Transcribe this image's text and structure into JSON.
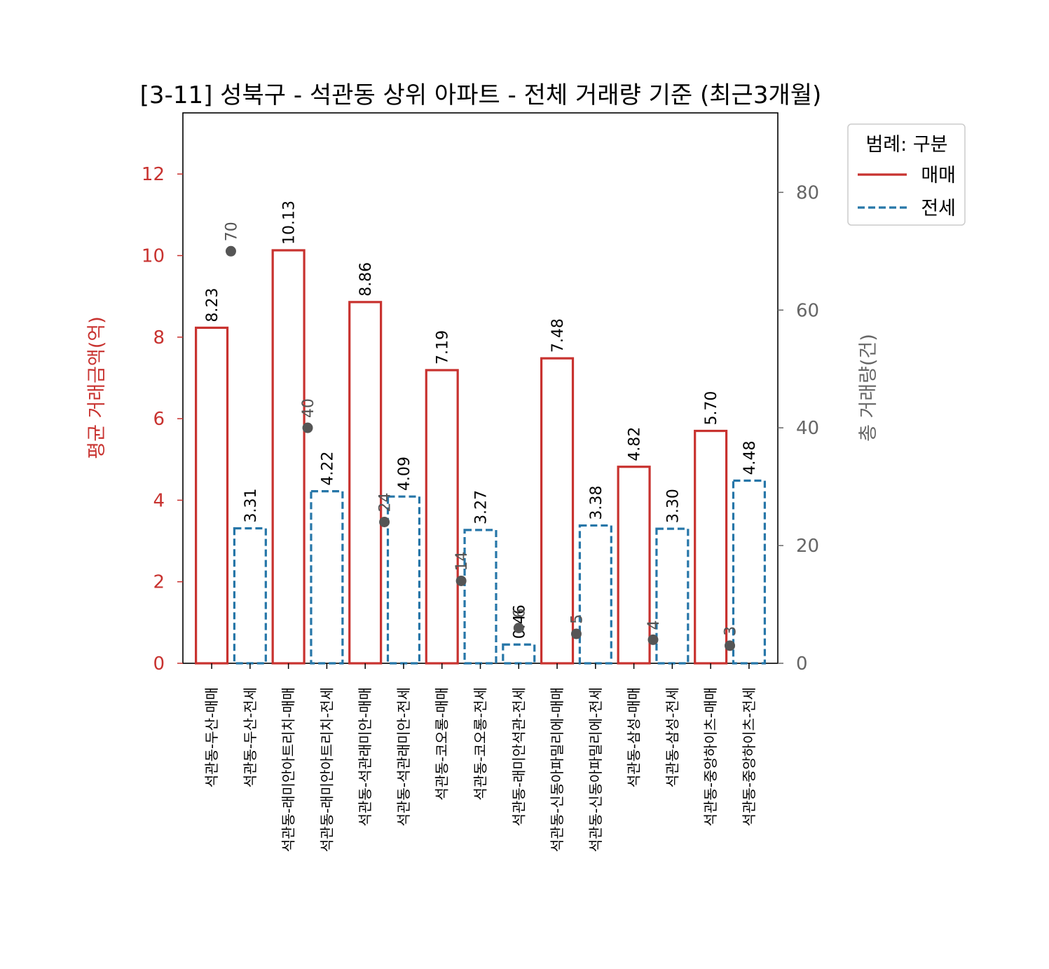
{
  "chart_data": {
    "type": "bar",
    "title": "[3-11] 성북구 - 석관동 상위 아파트 - 전체 거래량 기준 (최근3개월)",
    "ylabel": "평균 거래금액(억)",
    "y2label": "총 거래량(건)",
    "ylim": [
      0,
      13.5
    ],
    "y2lim": [
      0,
      93.5
    ],
    "yticks": [
      "0",
      "2",
      "4",
      "6",
      "8",
      "10",
      "12"
    ],
    "y2ticks": [
      "0",
      "20",
      "40",
      "60",
      "80"
    ],
    "categories": [
      "석관동-두산-매매",
      "석관동-두산-전세",
      "석관동-래미안아트리치-매매",
      "석관동-래미안아트리치-전세",
      "석관동-석관래미안-매매",
      "석관동-석관래미안-전세",
      "석관동-코오롱-매매",
      "석관동-코오롱-전세",
      "석관동-래미안석관-전세",
      "석관동-신동아파밀리에-매매",
      "석관동-신동아파밀리에-전세",
      "석관동-삼성-매매",
      "석관동-삼성-전세",
      "석관동-중앙하이츠-매매",
      "석관동-중앙하이츠-전세"
    ],
    "kinds": [
      "매매",
      "전세",
      "매매",
      "전세",
      "매매",
      "전세",
      "매매",
      "전세",
      "전세",
      "매매",
      "전세",
      "매매",
      "전세",
      "매매",
      "전세"
    ],
    "values": [
      8.23,
      3.31,
      10.13,
      4.22,
      8.86,
      4.09,
      7.19,
      3.27,
      0.46,
      7.48,
      3.38,
      4.82,
      3.3,
      5.7,
      4.48
    ],
    "value_labels": [
      "8.23",
      "3.31",
      "10.13",
      "4.22",
      "8.86",
      "4.09",
      "7.19",
      "3.27",
      "0.46",
      "7.48",
      "3.38",
      "4.82",
      "3.30",
      "5.70",
      "4.48"
    ],
    "volume_points": [
      {
        "x": 0.5,
        "value": 70,
        "label": "70"
      },
      {
        "x": 2.5,
        "value": 40,
        "label": "40"
      },
      {
        "x": 4.5,
        "value": 24,
        "label": "24"
      },
      {
        "x": 6.5,
        "value": 14,
        "label": "14"
      },
      {
        "x": 8.0,
        "value": 6,
        "label": "6"
      },
      {
        "x": 9.5,
        "value": 5,
        "label": "5"
      },
      {
        "x": 11.5,
        "value": 4,
        "label": "4"
      },
      {
        "x": 13.5,
        "value": 3,
        "label": "3"
      }
    ],
    "legend": {
      "title": "범례: 구분",
      "position": "outside-top-right",
      "items": [
        {
          "label": "매매",
          "style": "solid"
        },
        {
          "label": "전세",
          "style": "dashed"
        }
      ]
    },
    "colors": {
      "매매": "#c8322f",
      "전세": "#2676a8",
      "volume": "#555555",
      "left_axis": "#c8322f",
      "right_axis": "#666666"
    },
    "grid": false
  }
}
